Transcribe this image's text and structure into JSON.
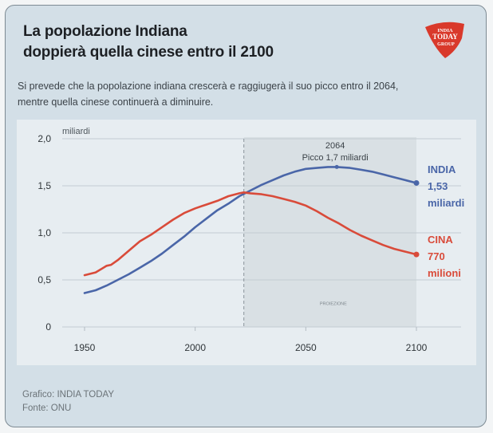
{
  "title_lines": [
    "La popolazione Indiana",
    "doppierà quella cinese entro il 2100"
  ],
  "subtitle_lines": [
    "Si prevede che la popolazione indiana crescerà e raggiugerà il suo picco entro il 2064,",
    "mentre quella cinese continuerà a diminuire."
  ],
  "logo": {
    "lines": [
      "INDIA",
      "TODAY",
      "GROUP"
    ],
    "color": "#d9392b"
  },
  "footer": {
    "credit": "Grafico: INDIA TODAY",
    "source": "Fonte: ONU"
  },
  "labels": {
    "india": [
      "INDIA",
      "1,53",
      "miliardi"
    ],
    "cina": [
      "CINA",
      "770",
      "milioni"
    ]
  },
  "chart_data": {
    "type": "line",
    "title": "La popolazione Indiana doppierà quella cinese entro il 2100",
    "xlabel": "",
    "ylabel": "miliardi",
    "xlim": [
      1950,
      2100
    ],
    "ylim": [
      0,
      2.0
    ],
    "xticks": [
      "1950",
      "2000",
      "2050",
      "2100"
    ],
    "xtick_values": [
      1950,
      2000,
      2050,
      2100
    ],
    "yticks": [
      "0",
      "0,5",
      "1,0",
      "1,5",
      "2,0"
    ],
    "ytick_values": [
      0,
      0.5,
      1.0,
      1.5,
      2.0
    ],
    "grid": true,
    "projection_start": 2022,
    "projection_label": "PROIEZIONE",
    "annotation": {
      "year": 2064,
      "text_lines": [
        "2064",
        "Picco 1,7 miliardi"
      ],
      "value": 1.7
    },
    "series": [
      {
        "name": "INDIA",
        "color": "#4a66a8",
        "x": [
          1950,
          1955,
          1960,
          1965,
          1970,
          1975,
          1980,
          1985,
          1990,
          1995,
          2000,
          2005,
          2010,
          2015,
          2020,
          2025,
          2030,
          2035,
          2040,
          2045,
          2050,
          2055,
          2060,
          2064,
          2070,
          2075,
          2080,
          2085,
          2090,
          2095,
          2100
        ],
        "y": [
          0.36,
          0.39,
          0.44,
          0.5,
          0.56,
          0.63,
          0.7,
          0.78,
          0.87,
          0.96,
          1.06,
          1.15,
          1.24,
          1.31,
          1.39,
          1.45,
          1.51,
          1.56,
          1.61,
          1.65,
          1.68,
          1.69,
          1.7,
          1.7,
          1.69,
          1.67,
          1.65,
          1.62,
          1.59,
          1.56,
          1.53
        ],
        "end_label": "1,53 miliardi"
      },
      {
        "name": "CINA",
        "color": "#d94b3a",
        "x": [
          1950,
          1955,
          1960,
          1962,
          1965,
          1970,
          1975,
          1980,
          1985,
          1990,
          1995,
          2000,
          2005,
          2010,
          2015,
          2020,
          2022,
          2025,
          2030,
          2035,
          2040,
          2045,
          2050,
          2055,
          2060,
          2065,
          2070,
          2075,
          2080,
          2085,
          2090,
          2095,
          2100
        ],
        "y": [
          0.55,
          0.58,
          0.65,
          0.66,
          0.71,
          0.81,
          0.91,
          0.98,
          1.06,
          1.14,
          1.21,
          1.26,
          1.3,
          1.34,
          1.39,
          1.42,
          1.43,
          1.42,
          1.41,
          1.39,
          1.36,
          1.33,
          1.29,
          1.23,
          1.16,
          1.1,
          1.03,
          0.97,
          0.92,
          0.87,
          0.83,
          0.8,
          0.77
        ],
        "end_label": "770 milioni"
      }
    ]
  }
}
